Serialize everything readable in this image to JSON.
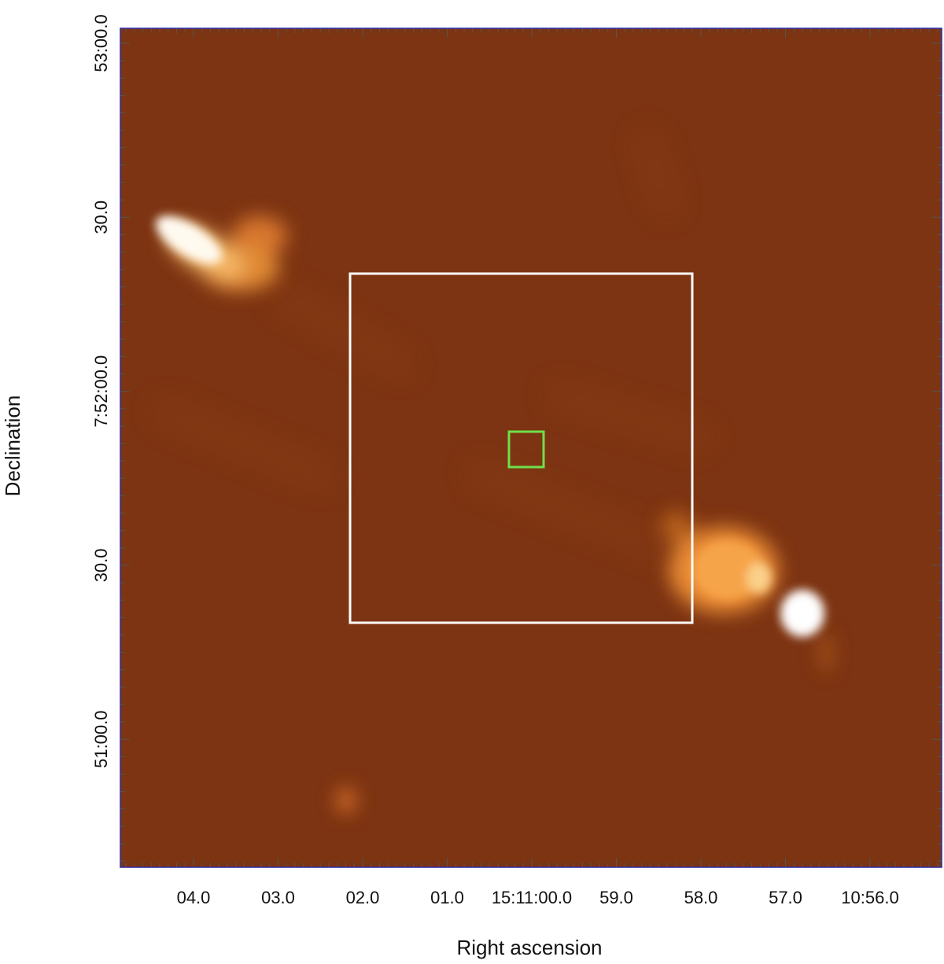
{
  "x_axis": {
    "title": "Right ascension",
    "tick_labels": [
      "04.0",
      "03.0",
      "02.0",
      "01.0",
      "15:11:00.0",
      "59.0",
      "58.0",
      "57.0",
      "10:56.0"
    ]
  },
  "y_axis": {
    "title": "Declination",
    "tick_labels": [
      "53:00.0",
      "30.0",
      "7:52:00.0",
      "30.0",
      "51:00.0"
    ]
  }
}
